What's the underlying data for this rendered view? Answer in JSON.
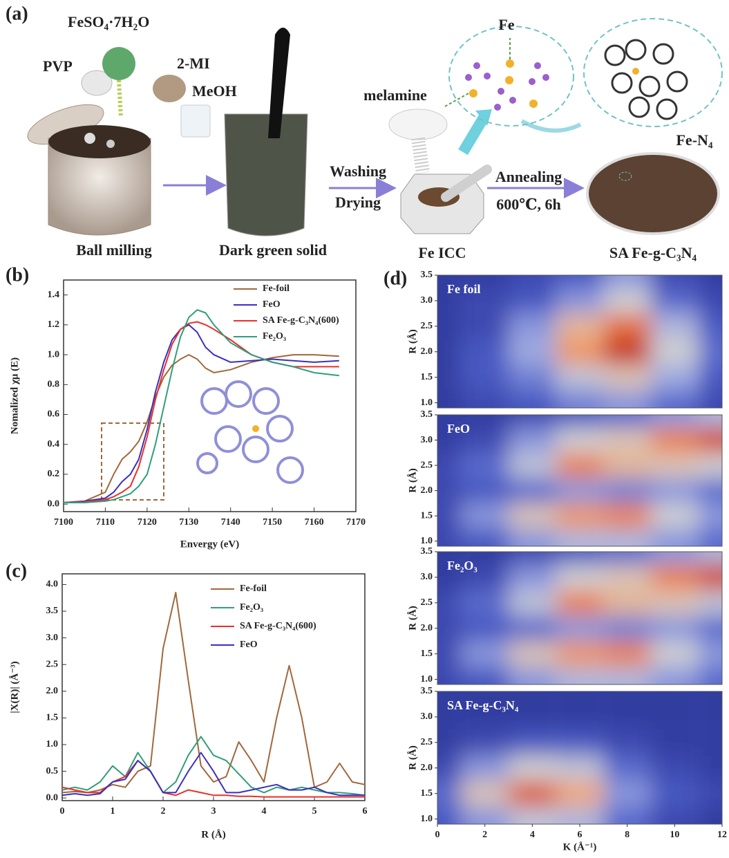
{
  "panel_labels": [
    "(a)",
    "(b)",
    "(c)",
    "(d)"
  ],
  "schematic": {
    "labels": [
      "PVP",
      "FeSO₄·7H₂O",
      "2-MI",
      "MeOH",
      "Ball milling",
      "Dark green solid",
      "Washing",
      "Drying",
      "melamine",
      "Fe",
      "Fe ICC",
      "Annealing",
      "600℃, 6h",
      "Fe-N₄",
      "SA Fe-g-C₃N₄"
    ]
  },
  "chart_data": [
    {
      "type": "line",
      "xlabel": "Envergy (eV)",
      "ylabel": "Nomalized  χμ (E)",
      "xlim": [
        7100,
        7170
      ],
      "xticks": [
        7100,
        7110,
        7120,
        7130,
        7140,
        7150,
        7160,
        7170
      ],
      "ylim": [
        -0.05,
        1.5
      ],
      "yticks": [
        {
          "value": 0,
          "label": "0.0"
        },
        0.2,
        0.4,
        0.6,
        0.8,
        {
          "value": 1,
          "label": "1.0"
        },
        1.2,
        1.4
      ],
      "grid": false,
      "legend": "upper right",
      "x": [
        7100,
        7105,
        7110,
        7112,
        7114,
        7116,
        7118,
        7120,
        7122,
        7124,
        7126,
        7128,
        7130,
        7132,
        7134,
        7136,
        7140,
        7145,
        7150,
        7155,
        7160,
        7166
      ],
      "series": [
        {
          "name": "Fe-foil",
          "color": "#a0673a",
          "values": [
            0.01,
            0.02,
            0.08,
            0.2,
            0.3,
            0.35,
            0.42,
            0.55,
            0.72,
            0.85,
            0.93,
            0.97,
            1.0,
            0.97,
            0.91,
            0.88,
            0.9,
            0.95,
            0.98,
            1.0,
            1.0,
            0.99
          ]
        },
        {
          "name": "FeO",
          "color": "#3a2fbf",
          "values": [
            0.01,
            0.02,
            0.04,
            0.08,
            0.15,
            0.2,
            0.3,
            0.5,
            0.75,
            0.95,
            1.1,
            1.17,
            1.2,
            1.15,
            1.05,
            1.0,
            0.95,
            0.96,
            0.97,
            0.96,
            0.95,
            0.96
          ]
        },
        {
          "name": "SA Fe-g-C₃N₄(600)",
          "color": "#e8302a",
          "values": [
            0.01,
            0.015,
            0.03,
            0.05,
            0.08,
            0.12,
            0.25,
            0.45,
            0.7,
            0.9,
            1.07,
            1.17,
            1.21,
            1.22,
            1.2,
            1.17,
            1.1,
            1.0,
            0.95,
            0.92,
            0.92,
            0.92
          ]
        },
        {
          "name": "Fe₂O₃",
          "color": "#2f9e7a",
          "values": [
            0.01,
            0.01,
            0.02,
            0.03,
            0.05,
            0.07,
            0.12,
            0.2,
            0.4,
            0.65,
            0.9,
            1.12,
            1.25,
            1.3,
            1.28,
            1.2,
            1.08,
            1.0,
            0.95,
            0.92,
            0.88,
            0.86
          ]
        }
      ]
    },
    {
      "type": "line",
      "xlabel": "R (Å)",
      "ylabel": "|X(R)| (Å⁻³)",
      "xlim": [
        0,
        6
      ],
      "xticks": [
        0,
        1,
        2,
        3,
        4,
        5,
        6
      ],
      "ylim": [
        -0.05,
        4.2
      ],
      "yticks": [
        {
          "value": 0,
          "label": "0.0"
        },
        0.5,
        {
          "value": 1,
          "label": "1.0"
        },
        1.5,
        {
          "value": 2,
          "label": "2.0"
        },
        2.5,
        {
          "value": 3,
          "label": "3.0"
        },
        3.5,
        {
          "value": 4,
          "label": "4.0"
        }
      ],
      "grid": false,
      "legend": "upper right",
      "x": [
        0,
        0.25,
        0.5,
        0.75,
        1,
        1.25,
        1.5,
        1.75,
        2,
        2.25,
        2.5,
        2.75,
        3,
        3.25,
        3.5,
        3.75,
        4,
        4.25,
        4.5,
        4.75,
        5,
        5.25,
        5.5,
        5.75,
        6
      ],
      "series": [
        {
          "name": "Fe-foil",
          "color": "#a0673a",
          "values": [
            0.1,
            0.12,
            0.1,
            0.15,
            0.25,
            0.2,
            0.5,
            0.6,
            2.8,
            3.85,
            2.2,
            0.6,
            0.3,
            0.4,
            1.05,
            0.7,
            0.3,
            1.5,
            2.48,
            1.5,
            0.2,
            0.3,
            0.65,
            0.3,
            0.25
          ]
        },
        {
          "name": "Fe₂O₃",
          "color": "#2f9e7a",
          "values": [
            0.15,
            0.2,
            0.15,
            0.3,
            0.6,
            0.4,
            0.85,
            0.5,
            0.1,
            0.3,
            0.8,
            1.15,
            0.8,
            0.7,
            0.45,
            0.2,
            0.1,
            0.2,
            0.15,
            0.2,
            0.15,
            0.1,
            0.1,
            0.08,
            0.05
          ]
        },
        {
          "name": "SA Fe-g-C₃N₄(600)",
          "color": "#e8302a",
          "values": [
            0.2,
            0.15,
            0.1,
            0.1,
            0.3,
            0.4,
            0.7,
            0.5,
            0.1,
            0.05,
            0.15,
            0.1,
            0.05,
            0.05,
            0.03,
            0.03,
            0.02,
            0.02,
            0.02,
            0.02,
            0.02,
            0.02,
            0.02,
            0.02,
            0.02
          ]
        },
        {
          "name": "FeO",
          "color": "#3a2fbf",
          "values": [
            0.05,
            0.08,
            0.05,
            0.08,
            0.3,
            0.35,
            0.7,
            0.5,
            0.1,
            0.1,
            0.5,
            0.85,
            0.5,
            0.1,
            0.1,
            0.15,
            0.2,
            0.25,
            0.15,
            0.15,
            0.2,
            0.1,
            0.05,
            0.05,
            0.05
          ]
        }
      ]
    },
    {
      "type": "contour",
      "xlabel": "K (Å⁻¹)",
      "ylabel": "R (Å)",
      "xlim": [
        0,
        12
      ],
      "xticks": [
        0,
        2,
        4,
        6,
        8,
        10,
        12
      ],
      "ylim": [
        0.9,
        3.5
      ],
      "yticks": [
        {
          "value": 1,
          "label": "1.0"
        },
        1.5,
        {
          "value": 2,
          "label": "2.0"
        },
        2.5,
        {
          "value": 3,
          "label": "3.0"
        },
        3.5
      ],
      "colormap": [
        "#26308f",
        "#4a5cc6",
        "#9aa6e2",
        "#cfcfd2",
        "#f2a36e",
        "#e0612f",
        "#b8231a"
      ],
      "k": [
        0,
        2,
        4,
        6,
        8,
        10,
        12
      ],
      "r": [
        1.0,
        1.5,
        2.0,
        2.5,
        3.0,
        3.5
      ],
      "panels": [
        {
          "name": "Fe foil",
          "z": [
            [
              0.05,
              0.1,
              0.15,
              0.25,
              0.3,
              0.2,
              0.1
            ],
            [
              0.05,
              0.15,
              0.25,
              0.45,
              0.55,
              0.35,
              0.15
            ],
            [
              0.05,
              0.15,
              0.35,
              0.7,
              0.95,
              0.5,
              0.2
            ],
            [
              0.05,
              0.1,
              0.3,
              0.6,
              0.8,
              0.4,
              0.15
            ],
            [
              0.05,
              0.1,
              0.15,
              0.3,
              0.5,
              0.2,
              0.1
            ],
            [
              0.05,
              0.05,
              0.1,
              0.15,
              0.3,
              0.1,
              0.05
            ]
          ]
        },
        {
          "name": "FeO",
          "z": [
            [
              0.1,
              0.15,
              0.3,
              0.4,
              0.4,
              0.3,
              0.2
            ],
            [
              0.1,
              0.3,
              0.55,
              0.7,
              0.75,
              0.5,
              0.3
            ],
            [
              0.1,
              0.15,
              0.2,
              0.3,
              0.25,
              0.3,
              0.2
            ],
            [
              0.1,
              0.2,
              0.45,
              0.75,
              0.6,
              0.55,
              0.5
            ],
            [
              0.05,
              0.1,
              0.3,
              0.5,
              0.55,
              0.75,
              0.9
            ],
            [
              0.05,
              0.05,
              0.1,
              0.15,
              0.2,
              0.3,
              0.4
            ]
          ]
        },
        {
          "name": "Fe₂O₃",
          "z": [
            [
              0.1,
              0.15,
              0.3,
              0.4,
              0.4,
              0.3,
              0.2
            ],
            [
              0.1,
              0.3,
              0.55,
              0.7,
              0.75,
              0.5,
              0.3
            ],
            [
              0.1,
              0.15,
              0.2,
              0.3,
              0.25,
              0.3,
              0.2
            ],
            [
              0.1,
              0.2,
              0.45,
              0.75,
              0.6,
              0.55,
              0.45
            ],
            [
              0.05,
              0.1,
              0.3,
              0.5,
              0.55,
              0.75,
              0.9
            ],
            [
              0.05,
              0.05,
              0.1,
              0.15,
              0.2,
              0.3,
              0.4
            ]
          ]
        },
        {
          "name": "SA Fe-g-C₃N₄",
          "z": [
            [
              0.15,
              0.3,
              0.45,
              0.4,
              0.2,
              0.1,
              0.05
            ],
            [
              0.2,
              0.55,
              0.85,
              0.65,
              0.3,
              0.15,
              0.1
            ],
            [
              0.1,
              0.3,
              0.5,
              0.45,
              0.2,
              0.1,
              0.05
            ],
            [
              0.05,
              0.1,
              0.15,
              0.15,
              0.1,
              0.05,
              0.05
            ],
            [
              0.05,
              0.05,
              0.05,
              0.05,
              0.05,
              0.05,
              0.05
            ],
            [
              0.05,
              0.05,
              0.05,
              0.05,
              0.05,
              0.05,
              0.05
            ]
          ]
        }
      ]
    }
  ]
}
